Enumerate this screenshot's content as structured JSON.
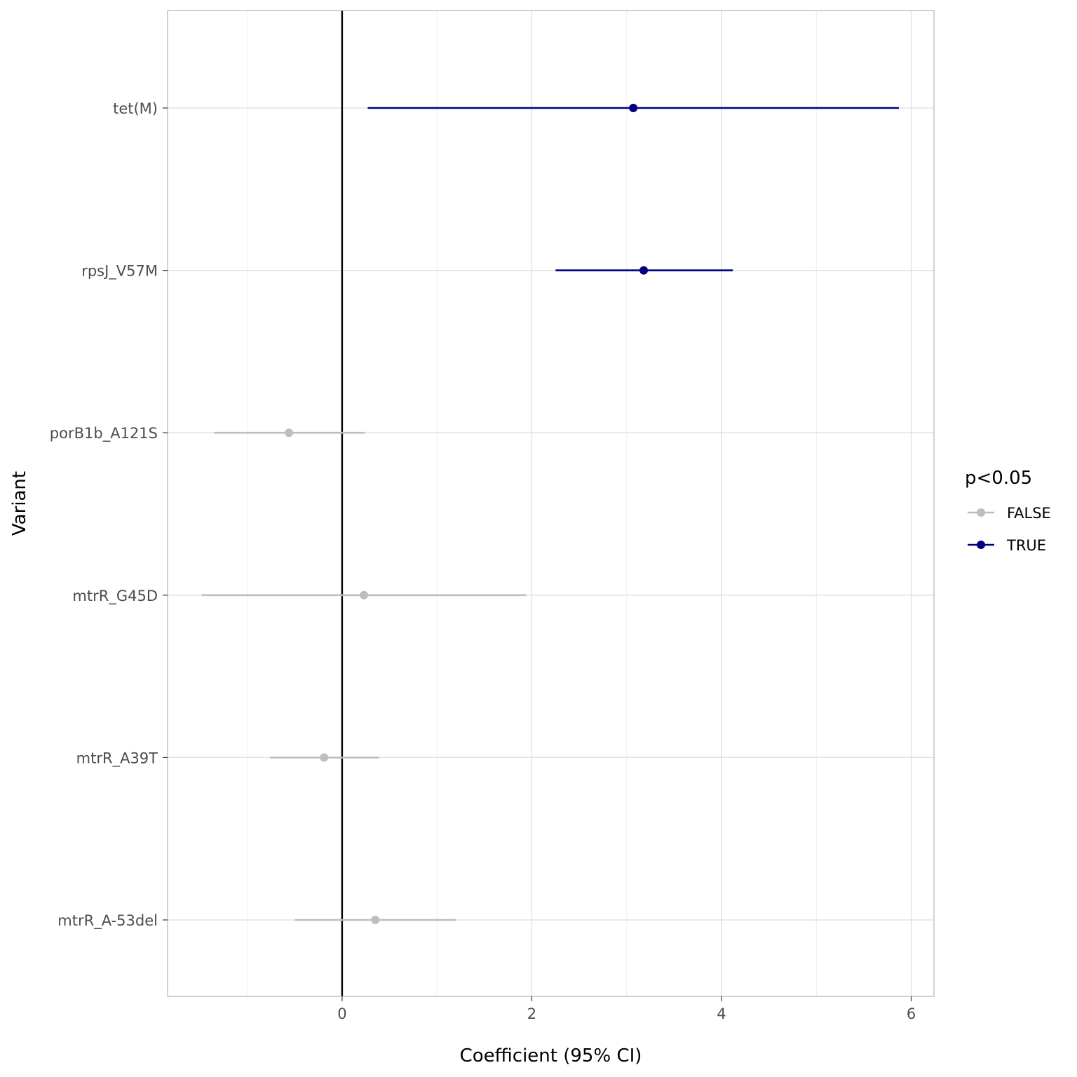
{
  "chart_data": {
    "type": "forest",
    "title": "",
    "xlabel": "Coefficient (95% CI)",
    "ylabel": "Variant",
    "xlim": [
      -1.84,
      6.24
    ],
    "x_ticks": [
      0,
      2,
      4,
      6
    ],
    "x_minor_ticks": [
      -1,
      1,
      3,
      5
    ],
    "grid": true,
    "reference_line_x": 0,
    "categories": [
      "tet(M)",
      "rpsJ_V57M",
      "porB1b_A121S",
      "mtrR_G45D",
      "mtrR_A39T",
      "mtrR_A-53del"
    ],
    "points": [
      {
        "variant": "tet(M)",
        "estimate": 3.07,
        "lower": 0.27,
        "upper": 5.87,
        "significant": "TRUE"
      },
      {
        "variant": "rpsJ_V57M",
        "estimate": 3.18,
        "lower": 2.25,
        "upper": 4.12,
        "significant": "TRUE"
      },
      {
        "variant": "porB1b_A121S",
        "estimate": -0.56,
        "lower": -1.35,
        "upper": 0.24,
        "significant": "FALSE"
      },
      {
        "variant": "mtrR_G45D",
        "estimate": 0.23,
        "lower": -1.48,
        "upper": 1.94,
        "significant": "FALSE"
      },
      {
        "variant": "mtrR_A39T",
        "estimate": -0.19,
        "lower": -0.76,
        "upper": 0.39,
        "significant": "FALSE"
      },
      {
        "variant": "mtrR_A-53del",
        "estimate": 0.35,
        "lower": -0.5,
        "upper": 1.2,
        "significant": "FALSE"
      }
    ],
    "legend": {
      "title": "p<0.05",
      "position": "right",
      "entries": [
        {
          "label": "FALSE",
          "color": "#bebebe"
        },
        {
          "label": "TRUE",
          "color": "#000080"
        }
      ]
    },
    "colors": {
      "FALSE": "#bebebe",
      "TRUE": "#000080",
      "grid_major": "#dedede",
      "grid_minor": "#efefef",
      "panel_border": "#b3b3b3",
      "reference_line": "#000000"
    }
  }
}
